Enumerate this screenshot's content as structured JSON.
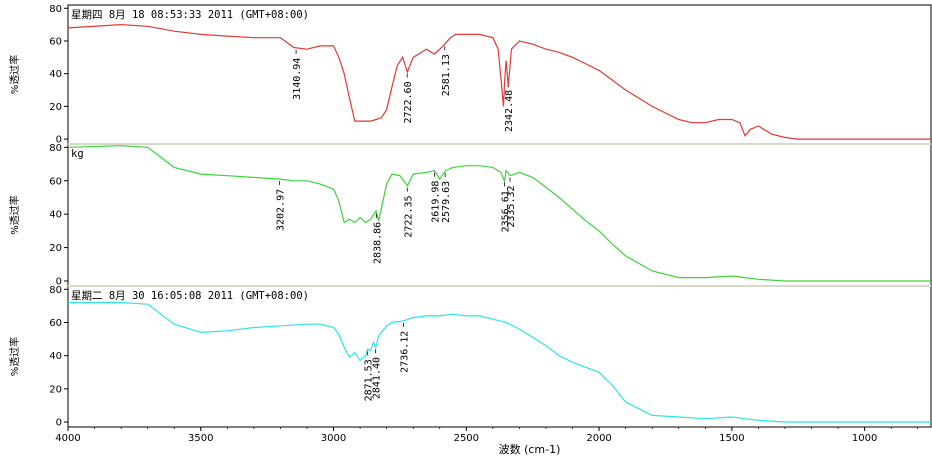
{
  "chart_data": {
    "type": "line",
    "xlabel": "波数 (cm-1)",
    "x_ticks": [
      4000,
      3500,
      3000,
      2500,
      2000,
      1500,
      1000
    ],
    "xlim": [
      4000,
      750
    ],
    "y_ticks": [
      0,
      20,
      40,
      60,
      80
    ],
    "ylim": [
      -3,
      82
    ],
    "panels": [
      {
        "header": "星期四 8月 18 08:53:33 2011 (GMT+08:00)",
        "ylabel": "%透过率",
        "color": "#e03a3a",
        "x": [
          4000,
          3800,
          3700,
          3600,
          3500,
          3400,
          3300,
          3200,
          3150,
          3100,
          3050,
          3000,
          2980,
          2960,
          2940,
          2920,
          2900,
          2880,
          2860,
          2840,
          2820,
          2800,
          2780,
          2760,
          2740,
          2722,
          2700,
          2680,
          2650,
          2620,
          2600,
          2581,
          2560,
          2540,
          2500,
          2450,
          2400,
          2380,
          2360,
          2356,
          2350,
          2342,
          2330,
          2300,
          2250,
          2200,
          2150,
          2100,
          2050,
          2000,
          1900,
          1800,
          1700,
          1650,
          1600,
          1550,
          1500,
          1470,
          1450,
          1430,
          1400,
          1380,
          1350,
          1300,
          1250,
          1200,
          1100,
          1000,
          900,
          800,
          750
        ],
        "y": [
          68,
          70,
          69,
          66,
          64,
          63,
          62,
          62,
          56,
          55,
          57,
          57,
          50,
          40,
          25,
          11,
          11,
          11,
          11,
          12,
          13,
          18,
          32,
          45,
          50,
          41,
          50,
          52,
          55,
          52,
          55,
          58,
          62,
          64,
          64,
          64,
          62,
          55,
          20,
          34,
          48,
          32,
          55,
          60,
          58,
          55,
          53,
          50,
          46,
          42,
          30,
          20,
          12,
          10,
          10,
          12,
          12,
          10,
          2,
          6,
          8,
          6,
          3,
          1,
          0,
          0,
          0,
          0,
          0,
          0,
          0
        ],
        "peaks": [
          3140.94,
          2722.6,
          2581.13,
          2342.48
        ]
      },
      {
        "header": "kg",
        "ylabel": "%透过率",
        "color": "#3fd23f",
        "x": [
          4000,
          3800,
          3700,
          3650,
          3600,
          3500,
          3400,
          3300,
          3200,
          3150,
          3100,
          3050,
          3000,
          2980,
          2960,
          2940,
          2920,
          2900,
          2880,
          2860,
          2840,
          2830,
          2800,
          2780,
          2750,
          2722,
          2700,
          2650,
          2620,
          2600,
          2579,
          2550,
          2500,
          2450,
          2400,
          2370,
          2356,
          2350,
          2335,
          2300,
          2250,
          2200,
          2150,
          2100,
          2050,
          2000,
          1950,
          1900,
          1800,
          1700,
          1600,
          1500,
          1450,
          1400,
          1300,
          1200,
          1100,
          1000,
          900,
          800,
          750
        ],
        "y": [
          80,
          81,
          80,
          74,
          68,
          64,
          63,
          62,
          61,
          60,
          60,
          58,
          55,
          48,
          35,
          37,
          35,
          38,
          35,
          37,
          42,
          36,
          58,
          64,
          63,
          57,
          64,
          65,
          66,
          61,
          66,
          68,
          69,
          69,
          68,
          65,
          60,
          66,
          63,
          65,
          62,
          56,
          50,
          43,
          36,
          30,
          22,
          15,
          6,
          2,
          2,
          3,
          2,
          1,
          0,
          0,
          0,
          0,
          0,
          0,
          0
        ],
        "peaks": [
          3202.97,
          2838.86,
          2722.35,
          2619.98,
          2579.63,
          2356.61,
          2335.32
        ]
      },
      {
        "header": "星期二 8月 30 16:05:08 2011 (GMT+08:00)",
        "ylabel": "%透过率",
        "color": "#2ee4e4",
        "x": [
          4000,
          3800,
          3700,
          3650,
          3600,
          3500,
          3400,
          3300,
          3200,
          3100,
          3050,
          3000,
          2980,
          2960,
          2940,
          2920,
          2900,
          2880,
          2871,
          2860,
          2850,
          2841,
          2830,
          2800,
          2780,
          2736,
          2700,
          2650,
          2600,
          2550,
          2500,
          2450,
          2400,
          2350,
          2300,
          2250,
          2200,
          2150,
          2100,
          2050,
          2000,
          1950,
          1900,
          1800,
          1700,
          1600,
          1500,
          1450,
          1400,
          1300,
          1200,
          1100,
          1000,
          900,
          800,
          750
        ],
        "y": [
          72,
          72,
          71,
          65,
          59,
          54,
          55,
          57,
          58,
          59,
          59,
          57,
          53,
          45,
          39,
          42,
          37,
          40,
          44,
          43,
          48,
          45,
          52,
          58,
          60,
          61,
          63,
          64,
          64,
          65,
          64,
          64,
          62,
          60,
          56,
          51,
          46,
          40,
          36,
          33,
          30,
          22,
          12,
          4,
          3,
          2,
          3,
          2,
          1,
          0,
          0,
          0,
          0,
          0,
          0,
          0
        ],
        "peaks": [
          2871.53,
          2841.4,
          2736.12
        ]
      }
    ]
  }
}
